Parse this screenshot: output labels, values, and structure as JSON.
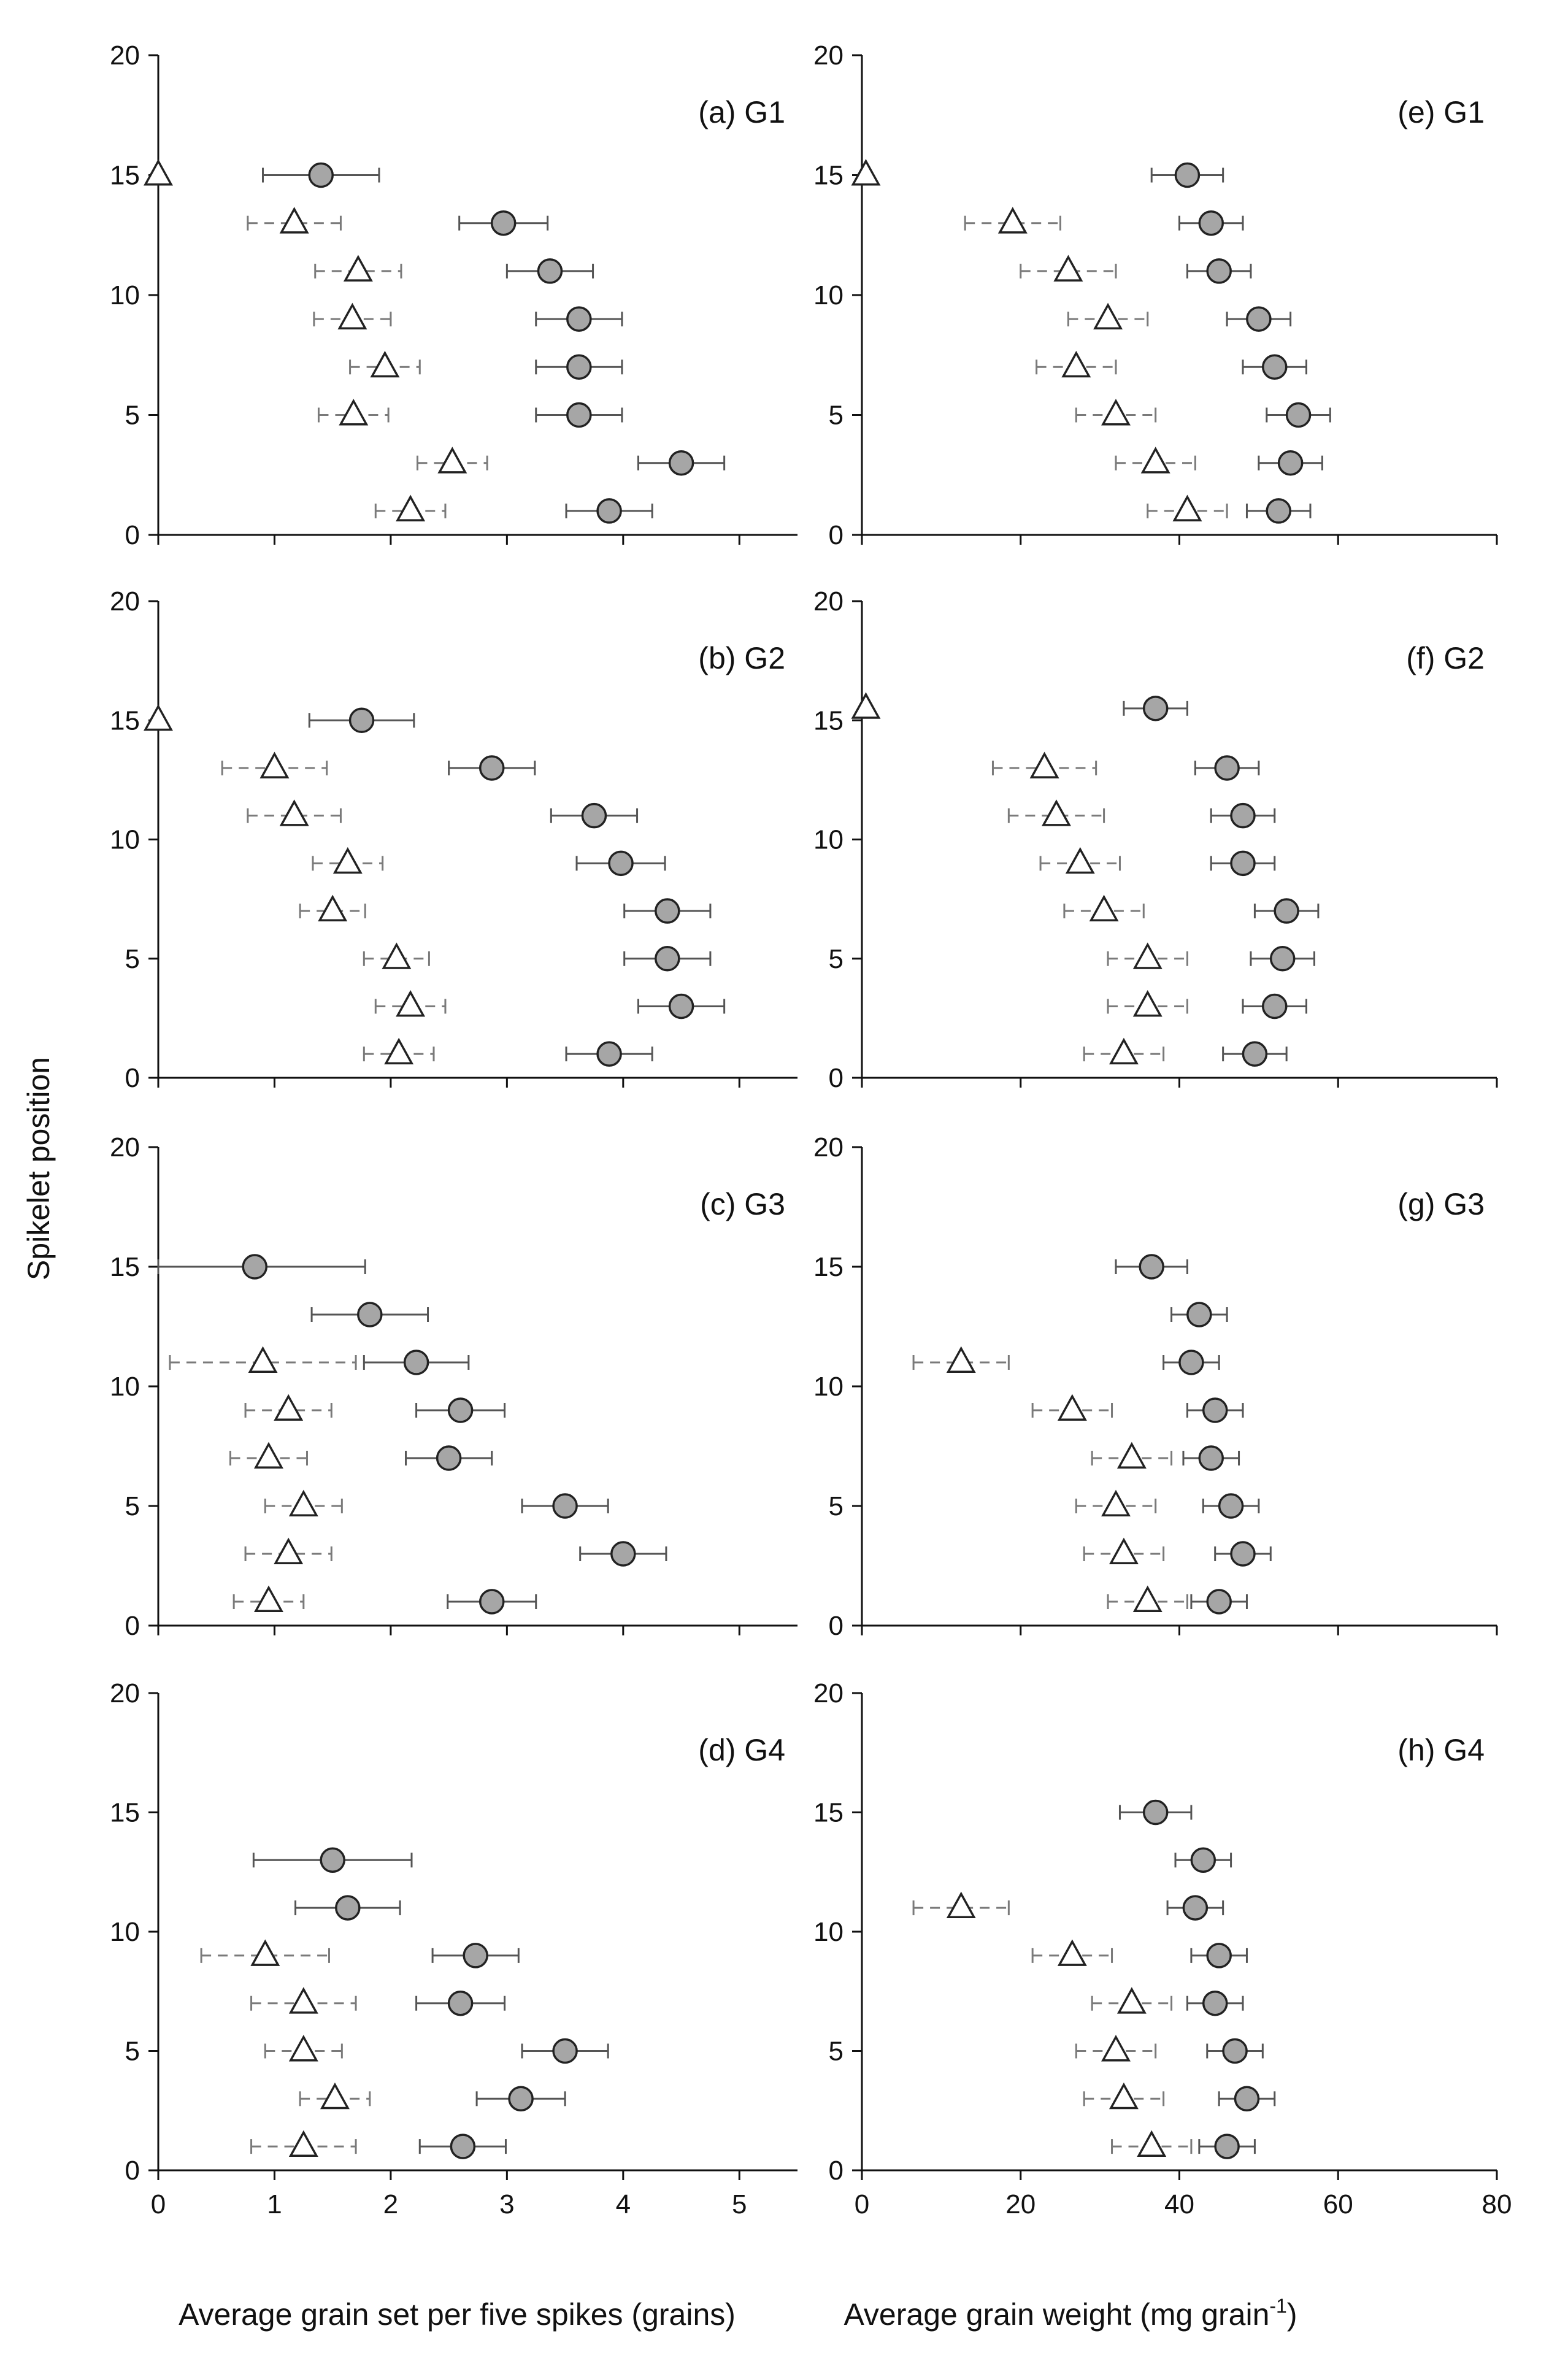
{
  "figure": {
    "y_axis_label": "Spikelet position",
    "left_x_axis_label": "Average grain set per five spikes (grains)",
    "right_x_axis_label_main": "Average grain weight (mg grain",
    "right_x_axis_label_sup": "-1",
    "right_x_axis_label_end": ")"
  },
  "legend": null,
  "chart_data": [
    {
      "type": "scatter",
      "panel": "(a) G1",
      "xlim": [
        0,
        5.5
      ],
      "ylim": [
        0,
        20
      ],
      "xticks": [
        0,
        1,
        2,
        3,
        4,
        5
      ],
      "yticks": [
        0,
        5,
        10,
        15,
        20
      ],
      "grid": false,
      "series": [
        {
          "marker": "circle-grey",
          "error_style": "solid",
          "points": [
            {
              "y": 15,
              "x": 1.4,
              "err": 0.5
            },
            {
              "y": 13,
              "x": 2.97,
              "err": 0.38
            },
            {
              "y": 11,
              "x": 3.37,
              "err": 0.37
            },
            {
              "y": 9,
              "x": 3.62,
              "err": 0.37
            },
            {
              "y": 7,
              "x": 3.62,
              "err": 0.37
            },
            {
              "y": 5,
              "x": 3.62,
              "err": 0.37
            },
            {
              "y": 3,
              "x": 4.5,
              "err": 0.37
            },
            {
              "y": 1,
              "x": 3.88,
              "err": 0.37
            }
          ]
        },
        {
          "marker": "triangle-open",
          "error_style": "dashed",
          "points": [
            {
              "y": 15,
              "x": 0,
              "err": 0
            },
            {
              "y": 13,
              "x": 1.17,
              "err": 0.4
            },
            {
              "y": 11,
              "x": 1.72,
              "err": 0.37
            },
            {
              "y": 9,
              "x": 1.67,
              "err": 0.33
            },
            {
              "y": 7,
              "x": 1.95,
              "err": 0.3
            },
            {
              "y": 5,
              "x": 1.68,
              "err": 0.3
            },
            {
              "y": 3,
              "x": 2.53,
              "err": 0.3
            },
            {
              "y": 1,
              "x": 2.17,
              "err": 0.3
            }
          ]
        }
      ]
    },
    {
      "type": "scatter",
      "panel": "(b) G2",
      "xlim": [
        0,
        5.5
      ],
      "ylim": [
        0,
        20
      ],
      "xticks": [
        0,
        1,
        2,
        3,
        4,
        5
      ],
      "yticks": [
        0,
        5,
        10,
        15,
        20
      ],
      "grid": false,
      "series": [
        {
          "marker": "circle-grey",
          "error_style": "solid",
          "points": [
            {
              "y": 15,
              "x": 1.75,
              "err": 0.45
            },
            {
              "y": 13,
              "x": 2.87,
              "err": 0.37
            },
            {
              "y": 11,
              "x": 3.75,
              "err": 0.37
            },
            {
              "y": 9,
              "x": 3.98,
              "err": 0.38
            },
            {
              "y": 7,
              "x": 4.38,
              "err": 0.37
            },
            {
              "y": 5,
              "x": 4.38,
              "err": 0.37
            },
            {
              "y": 3,
              "x": 4.5,
              "err": 0.37
            },
            {
              "y": 1,
              "x": 3.88,
              "err": 0.37
            }
          ]
        },
        {
          "marker": "triangle-open",
          "error_style": "dashed",
          "points": [
            {
              "y": 15,
              "x": 0,
              "err": 0
            },
            {
              "y": 13,
              "x": 1.0,
              "err": 0.45
            },
            {
              "y": 11,
              "x": 1.17,
              "err": 0.4
            },
            {
              "y": 9,
              "x": 1.63,
              "err": 0.3
            },
            {
              "y": 7,
              "x": 1.5,
              "err": 0.28
            },
            {
              "y": 5,
              "x": 2.05,
              "err": 0.28
            },
            {
              "y": 3,
              "x": 2.17,
              "err": 0.3
            },
            {
              "y": 1,
              "x": 2.07,
              "err": 0.3
            }
          ]
        }
      ]
    },
    {
      "type": "scatter",
      "panel": "(c) G3",
      "xlim": [
        0,
        5.5
      ],
      "ylim": [
        0,
        20
      ],
      "xticks": [
        0,
        1,
        2,
        3,
        4,
        5
      ],
      "yticks": [
        0,
        5,
        10,
        15,
        20
      ],
      "grid": false,
      "series": [
        {
          "marker": "circle-grey",
          "error_style": "solid",
          "points": [
            {
              "y": 15,
              "x": 0.83,
              "err": 0.95
            },
            {
              "y": 13,
              "x": 1.82,
              "err": 0.5
            },
            {
              "y": 11,
              "x": 2.22,
              "err": 0.45
            },
            {
              "y": 9,
              "x": 2.6,
              "err": 0.38
            },
            {
              "y": 7,
              "x": 2.5,
              "err": 0.37
            },
            {
              "y": 5,
              "x": 3.5,
              "err": 0.37
            },
            {
              "y": 3,
              "x": 4.0,
              "err": 0.37
            },
            {
              "y": 1,
              "x": 2.87,
              "err": 0.38
            }
          ]
        },
        {
          "marker": "triangle-open",
          "error_style": "dashed",
          "points": [
            {
              "y": 11,
              "x": 0.9,
              "err": 0.8
            },
            {
              "y": 9,
              "x": 1.12,
              "err": 0.37
            },
            {
              "y": 7,
              "x": 0.95,
              "err": 0.33
            },
            {
              "y": 5,
              "x": 1.25,
              "err": 0.33
            },
            {
              "y": 3,
              "x": 1.12,
              "err": 0.37
            },
            {
              "y": 1,
              "x": 0.95,
              "err": 0.3
            }
          ]
        }
      ]
    },
    {
      "type": "scatter",
      "panel": "(d) G4",
      "xlim": [
        0,
        5.5
      ],
      "ylim": [
        0,
        20
      ],
      "xticks": [
        0,
        1,
        2,
        3,
        4,
        5
      ],
      "yticks": [
        0,
        5,
        10,
        15,
        20
      ],
      "grid": false,
      "series": [
        {
          "marker": "circle-grey",
          "error_style": "solid",
          "points": [
            {
              "y": 13,
              "x": 1.5,
              "err": 0.68
            },
            {
              "y": 11,
              "x": 1.63,
              "err": 0.45
            },
            {
              "y": 9,
              "x": 2.73,
              "err": 0.37
            },
            {
              "y": 7,
              "x": 2.6,
              "err": 0.38
            },
            {
              "y": 5,
              "x": 3.5,
              "err": 0.37
            },
            {
              "y": 3,
              "x": 3.12,
              "err": 0.38
            },
            {
              "y": 1,
              "x": 2.62,
              "err": 0.37
            }
          ]
        },
        {
          "marker": "triangle-open",
          "error_style": "dashed",
          "points": [
            {
              "y": 9,
              "x": 0.92,
              "err": 0.55
            },
            {
              "y": 7,
              "x": 1.25,
              "err": 0.45
            },
            {
              "y": 5,
              "x": 1.25,
              "err": 0.33
            },
            {
              "y": 3,
              "x": 1.52,
              "err": 0.3
            },
            {
              "y": 1,
              "x": 1.25,
              "err": 0.45
            }
          ]
        }
      ]
    },
    {
      "type": "scatter",
      "panel": "(e) G1",
      "xlim": [
        0,
        80
      ],
      "ylim": [
        0,
        20
      ],
      "xticks": [
        0,
        20,
        40,
        60,
        80
      ],
      "yticks": [
        0,
        5,
        10,
        15,
        20
      ],
      "grid": false,
      "series": [
        {
          "marker": "circle-grey",
          "error_style": "solid",
          "points": [
            {
              "y": 15,
              "x": 41,
              "err": 4.5
            },
            {
              "y": 13,
              "x": 44,
              "err": 4
            },
            {
              "y": 11,
              "x": 45,
              "err": 4
            },
            {
              "y": 9,
              "x": 50,
              "err": 4
            },
            {
              "y": 7,
              "x": 52,
              "err": 4
            },
            {
              "y": 5,
              "x": 55,
              "err": 4
            },
            {
              "y": 3,
              "x": 54,
              "err": 4
            },
            {
              "y": 1,
              "x": 52.5,
              "err": 4
            }
          ]
        },
        {
          "marker": "triangle-open",
          "error_style": "dashed",
          "points": [
            {
              "y": 15,
              "x": 0.5,
              "err": 0
            },
            {
              "y": 13,
              "x": 19,
              "err": 6
            },
            {
              "y": 11,
              "x": 26,
              "err": 6
            },
            {
              "y": 9,
              "x": 31,
              "err": 5
            },
            {
              "y": 7,
              "x": 27,
              "err": 5
            },
            {
              "y": 5,
              "x": 32,
              "err": 5
            },
            {
              "y": 3,
              "x": 37,
              "err": 5
            },
            {
              "y": 1,
              "x": 41,
              "err": 5
            }
          ]
        }
      ]
    },
    {
      "type": "scatter",
      "panel": "(f) G2",
      "xlim": [
        0,
        80
      ],
      "ylim": [
        0,
        20
      ],
      "xticks": [
        0,
        20,
        40,
        60,
        80
      ],
      "yticks": [
        0,
        5,
        10,
        15,
        20
      ],
      "grid": false,
      "series": [
        {
          "marker": "circle-grey",
          "error_style": "solid",
          "points": [
            {
              "y": 15.5,
              "x": 37,
              "err": 4
            },
            {
              "y": 13,
              "x": 46,
              "err": 4
            },
            {
              "y": 11,
              "x": 48,
              "err": 4
            },
            {
              "y": 9,
              "x": 48,
              "err": 4
            },
            {
              "y": 7,
              "x": 53.5,
              "err": 4
            },
            {
              "y": 5,
              "x": 53,
              "err": 4
            },
            {
              "y": 3,
              "x": 52,
              "err": 4
            },
            {
              "y": 1,
              "x": 49.5,
              "err": 4
            }
          ]
        },
        {
          "marker": "triangle-open",
          "error_style": "dashed",
          "points": [
            {
              "y": 15.5,
              "x": 0.5,
              "err": 0
            },
            {
              "y": 13,
              "x": 23,
              "err": 6.5
            },
            {
              "y": 11,
              "x": 24.5,
              "err": 6
            },
            {
              "y": 9,
              "x": 27.5,
              "err": 5
            },
            {
              "y": 7,
              "x": 30.5,
              "err": 5
            },
            {
              "y": 5,
              "x": 36,
              "err": 5
            },
            {
              "y": 3,
              "x": 36,
              "err": 5
            },
            {
              "y": 1,
              "x": 33,
              "err": 5
            }
          ]
        }
      ]
    },
    {
      "type": "scatter",
      "panel": "(g) G3",
      "xlim": [
        0,
        80
      ],
      "ylim": [
        0,
        20
      ],
      "xticks": [
        0,
        20,
        40,
        60,
        80
      ],
      "yticks": [
        0,
        5,
        10,
        15,
        20
      ],
      "grid": false,
      "series": [
        {
          "marker": "circle-grey",
          "error_style": "solid",
          "points": [
            {
              "y": 15,
              "x": 36.5,
              "err": 4.5
            },
            {
              "y": 13,
              "x": 42.5,
              "err": 3.5
            },
            {
              "y": 11,
              "x": 41.5,
              "err": 3.5
            },
            {
              "y": 9,
              "x": 44.5,
              "err": 3.5
            },
            {
              "y": 7,
              "x": 44,
              "err": 3.5
            },
            {
              "y": 5,
              "x": 46.5,
              "err": 3.5
            },
            {
              "y": 3,
              "x": 48,
              "err": 3.5
            },
            {
              "y": 1,
              "x": 45,
              "err": 3.5
            }
          ]
        },
        {
          "marker": "triangle-open",
          "error_style": "dashed",
          "points": [
            {
              "y": 11,
              "x": 12.5,
              "err": 6
            },
            {
              "y": 9,
              "x": 26.5,
              "err": 5
            },
            {
              "y": 7,
              "x": 34,
              "err": 5
            },
            {
              "y": 5,
              "x": 32,
              "err": 5
            },
            {
              "y": 3,
              "x": 33,
              "err": 5
            },
            {
              "y": 1,
              "x": 36,
              "err": 5
            }
          ]
        }
      ]
    },
    {
      "type": "scatter",
      "panel": "(h) G4",
      "xlim": [
        0,
        80
      ],
      "ylim": [
        0,
        20
      ],
      "xticks": [
        0,
        20,
        40,
        60,
        80
      ],
      "yticks": [
        0,
        5,
        10,
        15,
        20
      ],
      "grid": false,
      "series": [
        {
          "marker": "circle-grey",
          "error_style": "solid",
          "points": [
            {
              "y": 15,
              "x": 37,
              "err": 4.5
            },
            {
              "y": 13,
              "x": 43,
              "err": 3.5
            },
            {
              "y": 11,
              "x": 42,
              "err": 3.5
            },
            {
              "y": 9,
              "x": 45,
              "err": 3.5
            },
            {
              "y": 7,
              "x": 44.5,
              "err": 3.5
            },
            {
              "y": 5,
              "x": 47,
              "err": 3.5
            },
            {
              "y": 3,
              "x": 48.5,
              "err": 3.5
            },
            {
              "y": 1,
              "x": 46,
              "err": 3.5
            }
          ]
        },
        {
          "marker": "triangle-open",
          "error_style": "dashed",
          "points": [
            {
              "y": 11,
              "x": 12.5,
              "err": 6
            },
            {
              "y": 9,
              "x": 26.5,
              "err": 5
            },
            {
              "y": 7,
              "x": 34,
              "err": 5
            },
            {
              "y": 5,
              "x": 32,
              "err": 5
            },
            {
              "y": 3,
              "x": 33,
              "err": 5
            },
            {
              "y": 1,
              "x": 36.5,
              "err": 5
            }
          ]
        }
      ]
    }
  ]
}
